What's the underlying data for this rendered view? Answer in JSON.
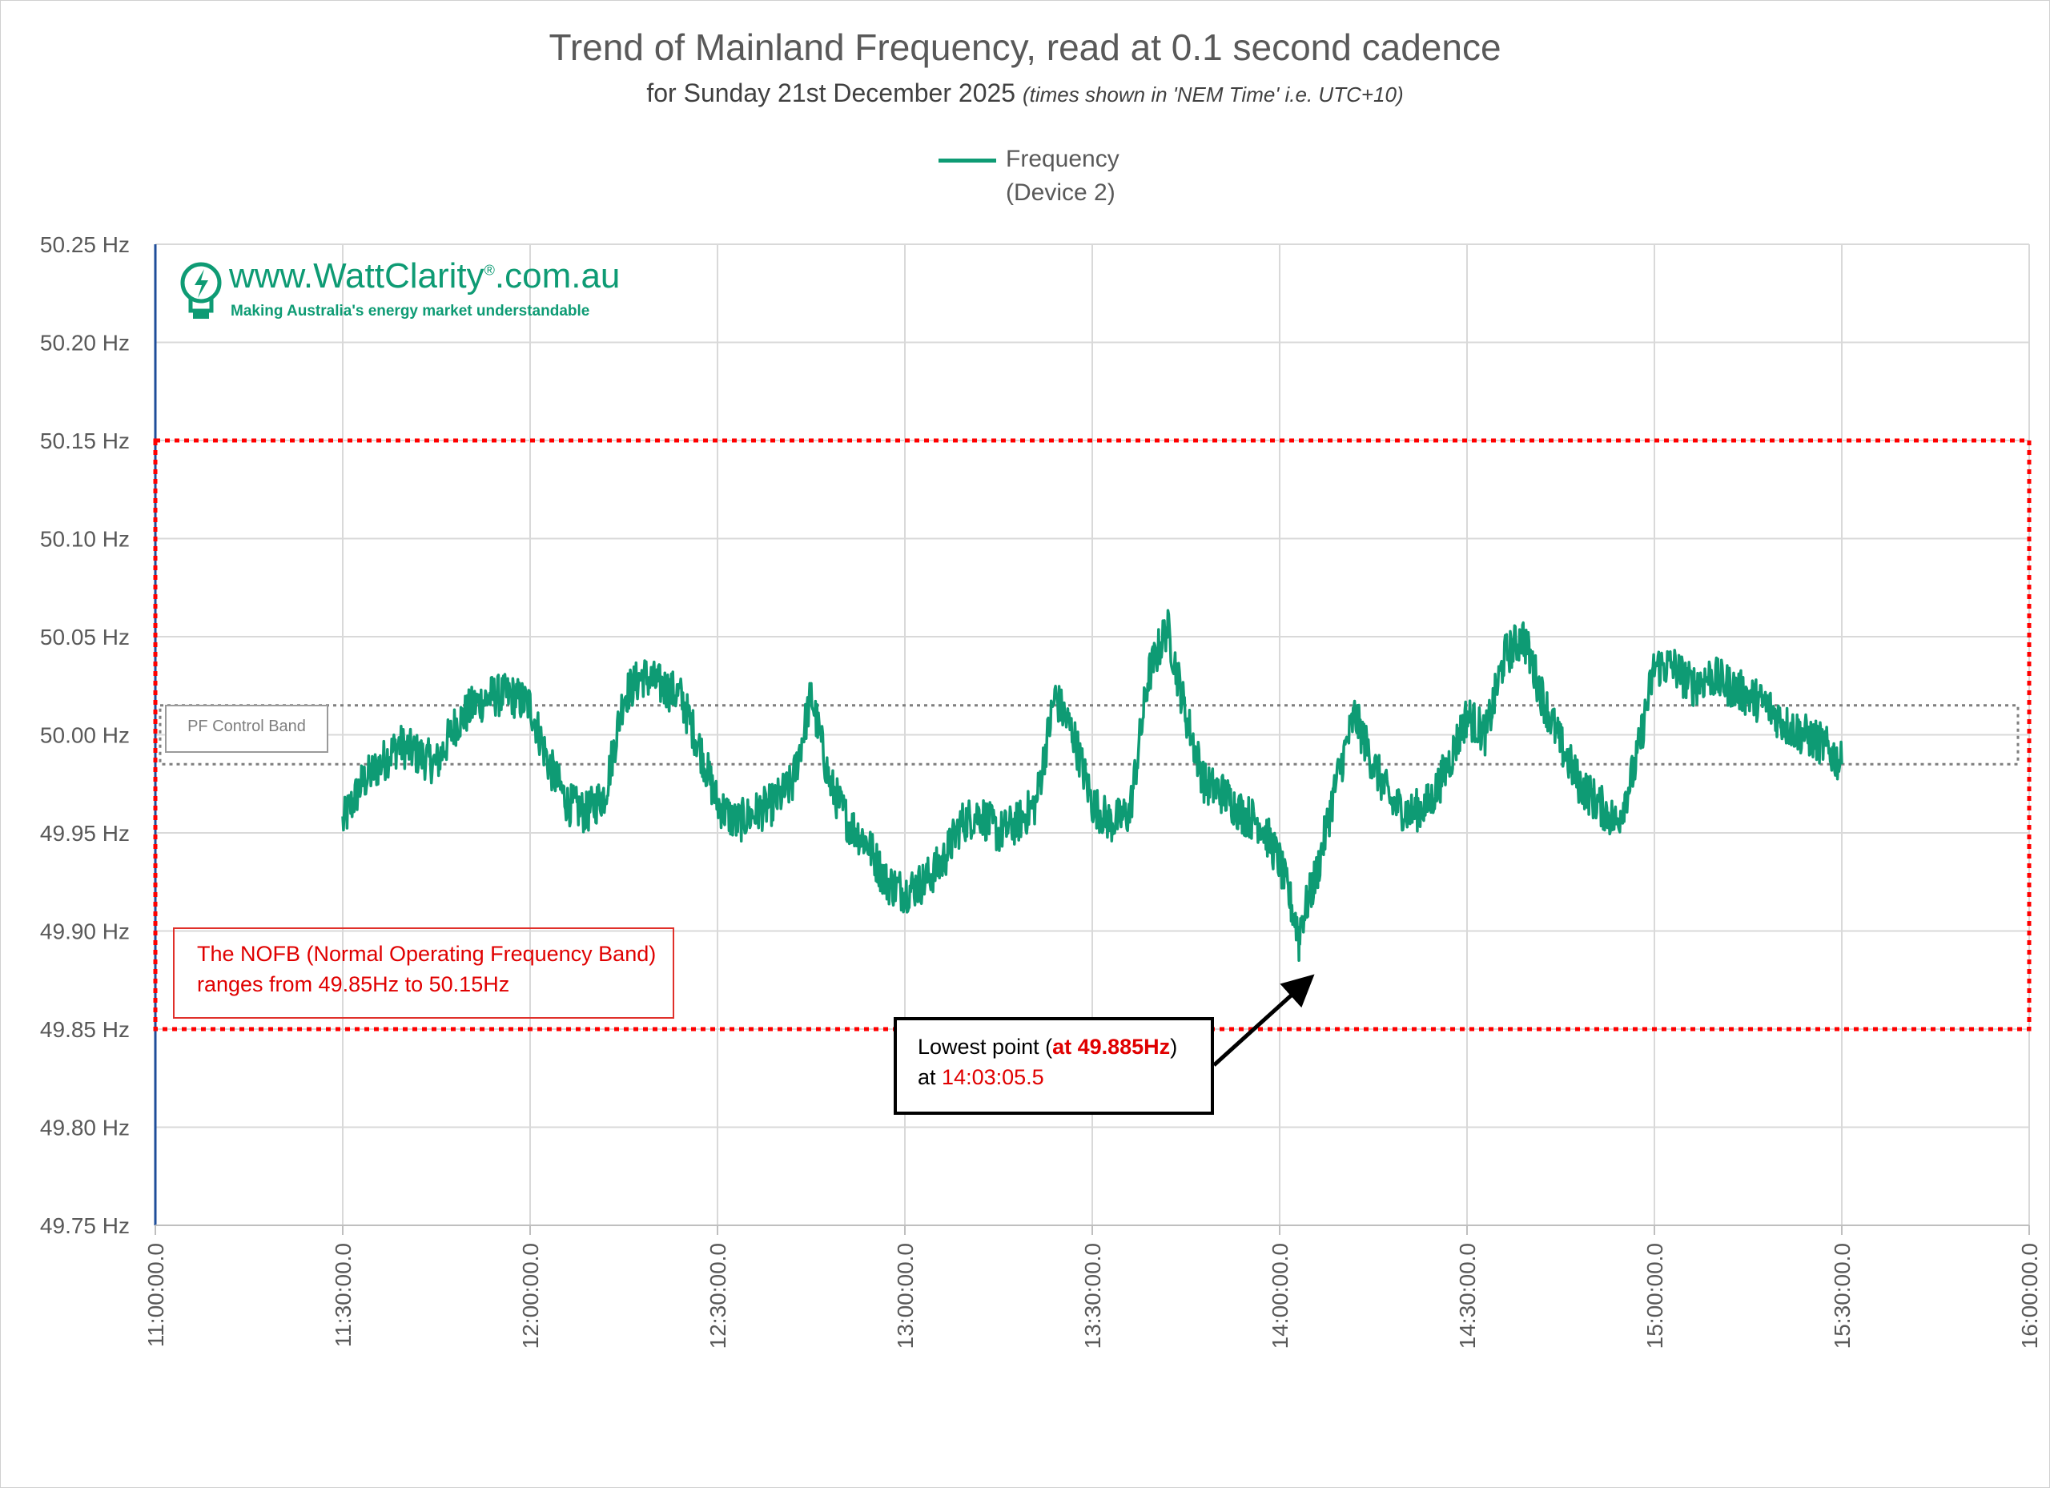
{
  "chart_data": {
    "type": "line",
    "title": "Trend of Mainland Frequency, read at 0.1 second cadence",
    "subtitle": "for Sunday 21st December 2025",
    "subtitle_note": "(times shown in 'NEM Time' i.e. UTC+10)",
    "legend": {
      "position": "top",
      "entries": [
        "Frequency",
        "(Device 2)"
      ]
    },
    "series": [
      {
        "name": "Frequency (Device 2)",
        "color": "#0e9b74",
        "x": [
          "11:30",
          "11:33",
          "11:36",
          "11:39",
          "11:42",
          "11:45",
          "11:48",
          "11:51",
          "11:54",
          "11:57",
          "12:00",
          "12:03",
          "12:06",
          "12:09",
          "12:12",
          "12:15",
          "12:18",
          "12:21",
          "12:24",
          "12:27",
          "12:30",
          "12:33",
          "12:36",
          "12:39",
          "12:42",
          "12:45",
          "12:48",
          "12:51",
          "12:54",
          "12:57",
          "13:00",
          "13:03",
          "13:06",
          "13:09",
          "13:12",
          "13:15",
          "13:18",
          "13:21",
          "13:24",
          "13:27",
          "13:30",
          "13:33",
          "13:36",
          "13:39",
          "13:42",
          "13:45",
          "13:48",
          "13:51",
          "13:54",
          "13:57",
          "14:00",
          "14:03",
          "14:06",
          "14:09",
          "14:12",
          "14:15",
          "14:18",
          "14:21",
          "14:24",
          "14:27",
          "14:30",
          "14:33",
          "14:36",
          "14:39",
          "14:42",
          "14:45",
          "14:48",
          "14:51",
          "14:54",
          "14:57",
          "15:00",
          "15:03",
          "15:06",
          "15:09",
          "15:12",
          "15:15",
          "15:18",
          "15:21",
          "15:24",
          "15:27",
          "15:30"
        ],
        "y": [
          49.955,
          49.975,
          49.985,
          49.995,
          49.99,
          49.985,
          50.005,
          50.015,
          50.02,
          50.02,
          50.015,
          49.985,
          49.965,
          49.96,
          49.97,
          50.02,
          50.03,
          50.025,
          50.02,
          49.995,
          49.965,
          49.955,
          49.96,
          49.965,
          49.975,
          50.02,
          49.975,
          49.955,
          49.945,
          49.925,
          49.92,
          49.925,
          49.935,
          49.955,
          49.96,
          49.95,
          49.955,
          49.965,
          50.02,
          50.0,
          49.965,
          49.955,
          49.96,
          50.03,
          50.055,
          50.01,
          49.975,
          49.97,
          49.96,
          49.955,
          49.935,
          49.9,
          49.93,
          49.975,
          50.01,
          49.985,
          49.965,
          49.96,
          49.965,
          49.985,
          50.01,
          50.0,
          50.04,
          50.05,
          50.02,
          49.995,
          49.975,
          49.965,
          49.955,
          49.985,
          50.035,
          50.035,
          50.025,
          50.03,
          50.025,
          50.02,
          50.015,
          50.005,
          50.0,
          49.995,
          49.985
        ]
      }
    ],
    "x_ticks": [
      "11:00:00.0",
      "11:30:00.0",
      "12:00:00.0",
      "12:30:00.0",
      "13:00:00.0",
      "13:30:00.0",
      "14:00:00.0",
      "14:30:00.0",
      "15:00:00.0",
      "15:30:00.0",
      "16:00:00.0"
    ],
    "y_ticks": [
      "50.25 Hz",
      "50.20 Hz",
      "50.15 Hz",
      "50.10 Hz",
      "50.05 Hz",
      "50.00 Hz",
      "49.95 Hz",
      "49.90 Hz",
      "49.85 Hz",
      "49.80 Hz",
      "49.75 Hz"
    ],
    "xlim": [
      "11:00",
      "16:00"
    ],
    "ylim": [
      49.75,
      50.25
    ],
    "grid": true,
    "annotations": {
      "nofb_band": {
        "low": 49.85,
        "high": 50.15,
        "color": "#e00000",
        "text_line1": "The NOFB  (Normal Operating Frequency Band)",
        "text_line2": "ranges from 49.85Hz to 50.15Hz"
      },
      "pf_band": {
        "low": 49.985,
        "high": 50.015,
        "label": "PF Control Band"
      },
      "lowest_point": {
        "time": "14:03:05.5",
        "value": 49.885,
        "text_prefix": "Lowest point (",
        "text_value": "at 49.885Hz",
        "text_suffix": ")",
        "text_at": "at ",
        "text_time": "14:03:05.5"
      }
    }
  },
  "logo": {
    "url": "www.WattClarity",
    "registered": "®",
    "url_suffix": ".com.au",
    "tagline": "Making Australia's energy market understandable",
    "icon": "lightbulb-bolt-icon",
    "color": "#0e9b74"
  }
}
